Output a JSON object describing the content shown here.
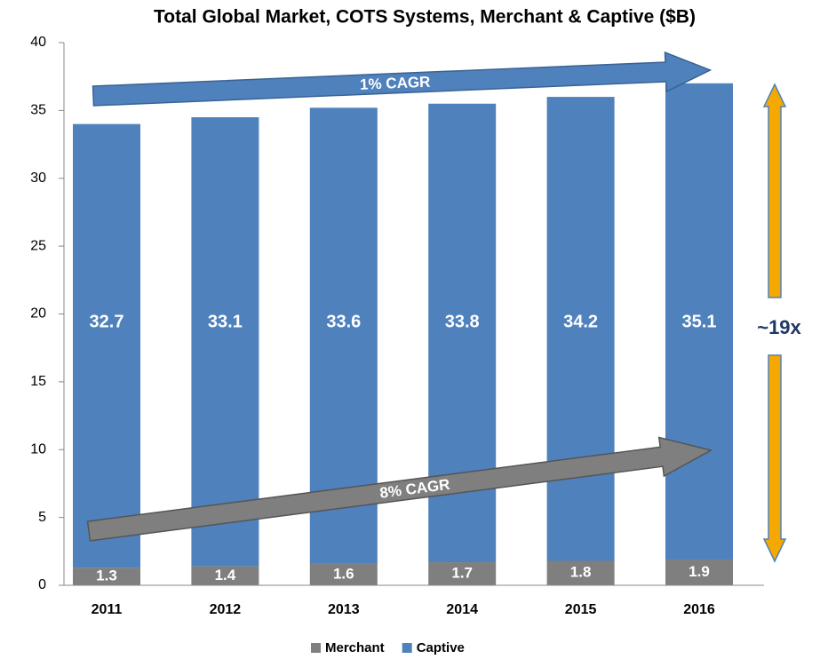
{
  "chart_data": {
    "type": "bar",
    "stacked": true,
    "title": "Total Global Market, COTS Systems, Merchant & Captive ($B)",
    "categories": [
      "2011",
      "2012",
      "2013",
      "2014",
      "2015",
      "2016"
    ],
    "series": [
      {
        "name": "Merchant",
        "color": "#7f7f7f",
        "values": [
          1.3,
          1.4,
          1.6,
          1.7,
          1.8,
          1.9
        ]
      },
      {
        "name": "Captive",
        "color": "#4f81bd",
        "values": [
          32.7,
          33.1,
          33.6,
          33.8,
          34.2,
          35.1
        ]
      }
    ],
    "ylim": [
      0,
      40
    ],
    "yticks": [
      0,
      5,
      10,
      15,
      20,
      25,
      30,
      35,
      40
    ],
    "annotations": [
      "1% CAGR",
      "8% CAGR",
      "~19x"
    ],
    "legend": "bottom"
  }
}
